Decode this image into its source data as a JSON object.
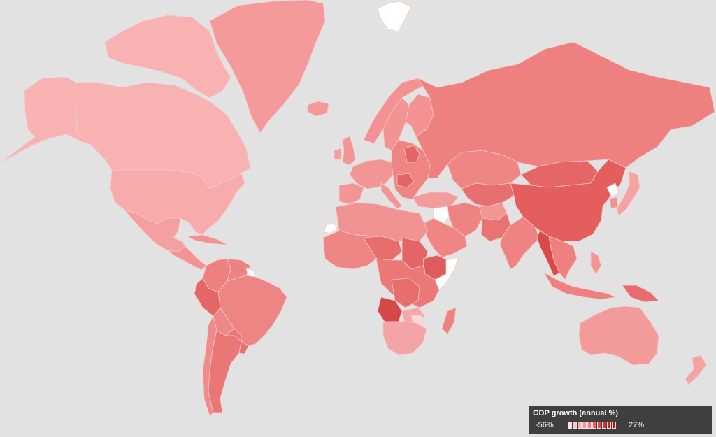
{
  "map": {
    "background": "#e2e2e2",
    "border_color": "#f4c9c9",
    "regions": [
      {
        "name": "Alaska",
        "fill": "#f9b2b2"
      },
      {
        "name": "Canada",
        "fill": "#f9b2b2"
      },
      {
        "name": "Arctic Archipelago",
        "fill": "#f9b2b2"
      },
      {
        "name": "Greenland",
        "fill": "#f59a9a"
      },
      {
        "name": "Iceland",
        "fill": "#f59a9a"
      },
      {
        "name": "United States",
        "fill": "#f8abab"
      },
      {
        "name": "Mexico",
        "fill": "#f5a0a0"
      },
      {
        "name": "Central America",
        "fill": "#f29292"
      },
      {
        "name": "Cuba",
        "fill": "#f29292"
      },
      {
        "name": "Colombia",
        "fill": "#ef8080"
      },
      {
        "name": "Venezuela",
        "fill": "#ee8282"
      },
      {
        "name": "Guyana",
        "fill": "#ffffff"
      },
      {
        "name": "Brazil",
        "fill": "#ee8585"
      },
      {
        "name": "Peru",
        "fill": "#e56666"
      },
      {
        "name": "Bolivia",
        "fill": "#ee8787"
      },
      {
        "name": "Chile",
        "fill": "#f18b8b"
      },
      {
        "name": "Argentina",
        "fill": "#ea7676"
      },
      {
        "name": "Paraguay",
        "fill": "#ea7777"
      },
      {
        "name": "Uruguay",
        "fill": "#e47070"
      },
      {
        "name": "Norway",
        "fill": "#f29292"
      },
      {
        "name": "Sweden",
        "fill": "#f29494"
      },
      {
        "name": "Finland",
        "fill": "#f29292"
      },
      {
        "name": "United Kingdom",
        "fill": "#f29595"
      },
      {
        "name": "Ireland",
        "fill": "#f5a0a0"
      },
      {
        "name": "Western Europe",
        "fill": "#f29595"
      },
      {
        "name": "Spain",
        "fill": "#f29595"
      },
      {
        "name": "Italy",
        "fill": "#f29595"
      },
      {
        "name": "Eastern Europe",
        "fill": "#ee8484"
      },
      {
        "name": "Belarus",
        "fill": "#e46565"
      },
      {
        "name": "Romania",
        "fill": "#e46565"
      },
      {
        "name": "Turkey",
        "fill": "#f39c9c"
      },
      {
        "name": "Russia",
        "fill": "#ee8080"
      },
      {
        "name": "Kazakhstan",
        "fill": "#ef8686"
      },
      {
        "name": "Central Asia",
        "fill": "#e86f6f"
      },
      {
        "name": "Mongolia",
        "fill": "#e46666"
      },
      {
        "name": "China",
        "fill": "#e45e5e"
      },
      {
        "name": "North Korea",
        "fill": "#ffffff"
      },
      {
        "name": "South Korea",
        "fill": "#f29393"
      },
      {
        "name": "Japan",
        "fill": "#f4a2a2"
      },
      {
        "name": "Iran",
        "fill": "#ee8383"
      },
      {
        "name": "Iraq",
        "fill": "#ffffff"
      },
      {
        "name": "Saudi Arabia",
        "fill": "#ef8585"
      },
      {
        "name": "Afghanistan",
        "fill": "#f29595"
      },
      {
        "name": "Pakistan",
        "fill": "#e97272"
      },
      {
        "name": "India",
        "fill": "#ef8282"
      },
      {
        "name": "Myanmar",
        "fill": "#d84a4a"
      },
      {
        "name": "Southeast Asia",
        "fill": "#ee8080"
      },
      {
        "name": "Indonesia",
        "fill": "#ee8080"
      },
      {
        "name": "Philippines",
        "fill": "#f29595"
      },
      {
        "name": "Papua New Guinea",
        "fill": "#e86c6c"
      },
      {
        "name": "Australia",
        "fill": "#f39a9a"
      },
      {
        "name": "New Zealand",
        "fill": "#f4a2a2"
      },
      {
        "name": "Western Sahara",
        "fill": "#ffffff"
      },
      {
        "name": "North Africa",
        "fill": "#f29393"
      },
      {
        "name": "West Africa",
        "fill": "#ef8686"
      },
      {
        "name": "Niger-Chad",
        "fill": "#e86e6e"
      },
      {
        "name": "Sudan",
        "fill": "#e46565"
      },
      {
        "name": "Ethiopia",
        "fill": "#e05c5c"
      },
      {
        "name": "Somalia",
        "fill": "#ffffff"
      },
      {
        "name": "Central Africa",
        "fill": "#eb7777"
      },
      {
        "name": "DR Congo",
        "fill": "#e86d6d"
      },
      {
        "name": "Angola",
        "fill": "#d44848"
      },
      {
        "name": "Zambia",
        "fill": "#f5a8a8"
      },
      {
        "name": "Zimbabwe",
        "fill": "#fbd6d6"
      },
      {
        "name": "Southern Africa",
        "fill": "#f4a4a4"
      },
      {
        "name": "Madagascar",
        "fill": "#ee8282"
      },
      {
        "name": "Svalbard",
        "fill": "#ffffff"
      }
    ]
  },
  "legend": {
    "title": "GDP growth (annual %)",
    "min_label": "-56%",
    "max_label": "27%",
    "swatches": [
      "#fbe3e3",
      "#f8c9c9",
      "#f5b0b0",
      "#f29797",
      "#ee7e7e",
      "#e96565",
      "#e34c4c",
      "#dc3434",
      "#d41c1c",
      "#cc0505"
    ]
  }
}
